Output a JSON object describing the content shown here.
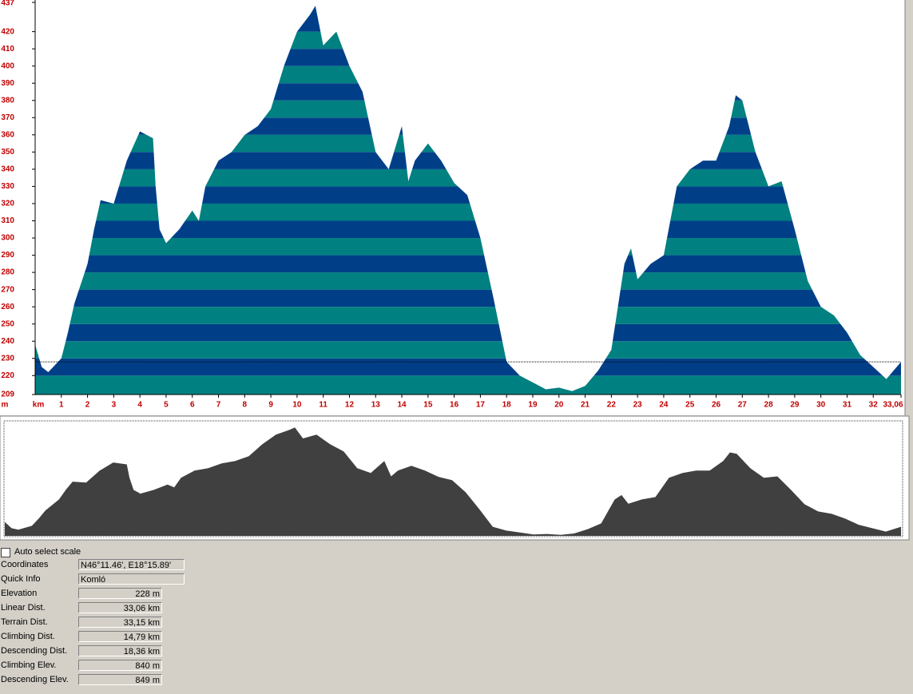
{
  "chart_data": {
    "type": "area",
    "x_label": "km",
    "y_label": "m",
    "x": [
      0,
      0.25,
      0.5,
      1,
      1.25,
      1.5,
      2,
      2.25,
      2.5,
      3,
      3.5,
      4,
      4.5,
      4.6,
      4.75,
      5,
      5.5,
      6,
      6.25,
      6.5,
      7,
      7.5,
      8,
      8.5,
      9,
      9.5,
      10,
      10.5,
      10.7,
      11,
      11.5,
      12,
      12.5,
      13,
      13.5,
      14,
      14.25,
      14.5,
      15,
      15.5,
      16,
      16.5,
      17,
      17.5,
      18,
      18.5,
      19,
      19.5,
      20,
      20.5,
      21,
      21.5,
      22,
      22.5,
      22.75,
      23,
      23.5,
      24,
      24.5,
      25,
      25.5,
      26,
      26.5,
      26.75,
      27,
      27.5,
      28,
      28.5,
      29,
      29.5,
      30,
      30.5,
      31,
      31.5,
      32,
      32.5,
      33.06
    ],
    "values": [
      238,
      225,
      222,
      230,
      245,
      262,
      285,
      305,
      322,
      320,
      345,
      362,
      358,
      330,
      305,
      297,
      305,
      316,
      310,
      330,
      345,
      350,
      360,
      365,
      375,
      400,
      420,
      430,
      435,
      412,
      420,
      400,
      385,
      350,
      340,
      365,
      333,
      345,
      355,
      345,
      332,
      325,
      300,
      265,
      228,
      220,
      216,
      212,
      213,
      211,
      214,
      223,
      235,
      285,
      294,
      276,
      285,
      290,
      330,
      340,
      345,
      345,
      365,
      383,
      380,
      350,
      330,
      333,
      305,
      275,
      260,
      255,
      245,
      232,
      225,
      218,
      228
    ],
    "colors": [
      "#008080",
      "#003f88"
    ],
    "overview_color": "#404040",
    "marker_elevation": 228,
    "xlim": [
      0,
      33.06
    ],
    "ylim": [
      209,
      437
    ],
    "xticks": [
      1,
      2,
      3,
      4,
      5,
      6,
      7,
      8,
      9,
      10,
      11,
      12,
      13,
      14,
      15,
      16,
      17,
      18,
      19,
      20,
      21,
      22,
      23,
      24,
      25,
      26,
      27,
      28,
      29,
      30,
      31,
      32,
      {
        "value": 33.06,
        "label": "33,06"
      }
    ],
    "yticks": [
      209,
      220,
      230,
      240,
      250,
      260,
      270,
      280,
      290,
      300,
      310,
      320,
      330,
      340,
      350,
      360,
      370,
      380,
      390,
      400,
      410,
      420,
      437
    ]
  },
  "panel": {
    "checkbox_label": "Auto select scale",
    "rows": [
      {
        "label": "Coordinates",
        "value": "N46°11.46', E18°15.89'"
      },
      {
        "label": "Quick Info",
        "value": "Komló"
      },
      {
        "label": "Elevation",
        "value": "228 m"
      },
      {
        "label": "Linear Dist.",
        "value": "33,06 km"
      },
      {
        "label": "Terrain Dist.",
        "value": "33,15 km"
      },
      {
        "label": "Climbing Dist.",
        "value": "14,79 km"
      },
      {
        "label": "Descending Dist.",
        "value": "18,36 km"
      },
      {
        "label": "Climbing Elev.",
        "value": "840 m"
      },
      {
        "label": "Descending Elev.",
        "value": "849 m"
      }
    ]
  }
}
